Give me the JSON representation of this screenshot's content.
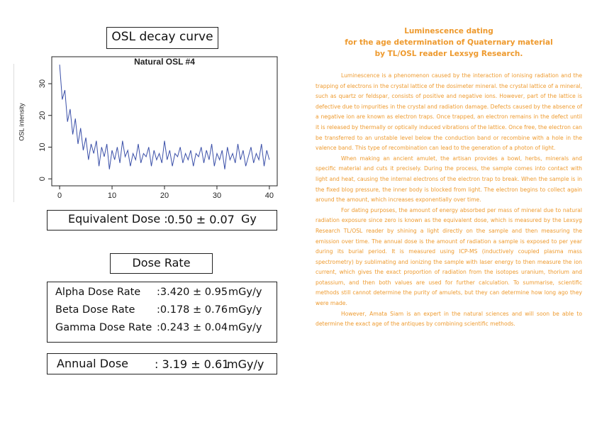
{
  "heading": "OSL decay curve",
  "chart_data": {
    "type": "line",
    "title": "Natural OSL #4",
    "ylabel": "OSL intensity",
    "color": "#3a4fa8",
    "x": [
      0,
      0.5,
      1,
      1.5,
      2,
      2.5,
      3,
      3.5,
      4,
      4.5,
      5,
      5.5,
      6,
      6.5,
      7,
      7.5,
      8,
      8.5,
      9,
      9.5,
      10,
      10.5,
      11,
      11.5,
      12,
      12.5,
      13,
      13.5,
      14,
      14.5,
      15,
      15.5,
      16,
      16.5,
      17,
      17.5,
      18,
      18.5,
      19,
      19.5,
      20,
      20.5,
      21,
      21.5,
      22,
      22.5,
      23,
      23.5,
      24,
      24.5,
      25,
      25.5,
      26,
      26.5,
      27,
      27.5,
      28,
      28.5,
      29,
      29.5,
      30,
      30.5,
      31,
      31.5,
      32,
      32.5,
      33,
      33.5,
      34,
      34.5,
      35,
      35.5,
      36,
      36.5,
      37,
      37.5,
      38,
      38.5,
      39,
      39.5,
      40
    ],
    "values": [
      36,
      25,
      28,
      18,
      22,
      14,
      19,
      11,
      16,
      9,
      13,
      6,
      11,
      8,
      12,
      4,
      10,
      7,
      11,
      3,
      9,
      6,
      10,
      5,
      12,
      7,
      9,
      4,
      8,
      6,
      11,
      5,
      8,
      7,
      10,
      4,
      9,
      6,
      8,
      5,
      12,
      6,
      9,
      4,
      8,
      7,
      10,
      5,
      8,
      6,
      9,
      4,
      8,
      7,
      10,
      5,
      9,
      6,
      11,
      4,
      8,
      6,
      9,
      3,
      10,
      6,
      8,
      5,
      11,
      6,
      9,
      4,
      7,
      10,
      5,
      8,
      6,
      11,
      4,
      9,
      6
    ],
    "xlim": [
      -1.5,
      41.5
    ],
    "ylim": [
      -2.2,
      38.5
    ],
    "xticks": [
      0,
      10,
      20,
      30,
      40
    ],
    "yticks": [
      0,
      10,
      20,
      30
    ]
  },
  "equivalent_dose": {
    "label": "Equivalent Dose :",
    "value": "0.50 ± 0.07",
    "unit": "Gy"
  },
  "dose_rate": {
    "heading": "Dose Rate",
    "rows": [
      {
        "label": "Alpha Dose Rate",
        "value": ":3.420 ± 0.95",
        "unit": "mGy/y"
      },
      {
        "label": "Beta Dose Rate",
        "value": ":0.178 ± 0.76",
        "unit": "mGy/y"
      },
      {
        "label": "Gamma Dose Rate",
        "value": ":0.243 ± 0.04",
        "unit": "mGy/y"
      }
    ]
  },
  "annual_dose": {
    "label": "Annual Dose",
    "value": ": 3.19 ± 0.61",
    "unit": "mGy/y"
  },
  "article": {
    "title": [
      "Luminescence dating",
      "for the age determination of Quaternary material",
      "by TL/OSL reader Lexsyg Research."
    ],
    "paragraphs": [
      "Luminescence is a phenomenon caused by the interaction of ionising radiation and the trapping of electrons in the crystal lattice of the dosimeter mineral. the crystal lattice of a mineral, such as quartz or feldspar, consists of positive and negative ions. However, part of the lattice is defective due to impurities in the crystal and radiation damage. Defects caused by the absence of a negative ion are known as electron traps. Once trapped, an electron remains in the defect until it is released by thermally or optically induced vibrations of the lattice. Once free, the electron can be transferred to an unstable level below the conduction band or recombine with a hole in the valence band. This type of recombination can lead to the generation of a photon of light.",
      "When making an ancient amulet, the artisan provides a bowl, herbs, minerals and specific material and cuts it precisely. During the process, the sample comes into contact with light and heat, causing the internal electrons of the electron trap to break. When the sample is in the fixed blog pressure, the inner body is blocked from light. The electron begins to collect again around the amount, which increases exponentially over time.",
      "For dating purposes, the amount of energy absorbed per mass of mineral due to natural radiation exposure since zero is known as the equivalent dose, which is measured by the Lexsyg Research TL/OSL reader by shining a light directly on the sample and then measuring the emission over time. The annual dose is the amount of radiation a sample is exposed to per year during its burial period. It is measured using ICP-MS (inductively coupled plasma mass spectrometry) by sublimating and ionizing the sample with laser energy to then measure the ion current, which gives the exact proportion of radiation from the isotopes uranium, thorium and potassium, and then both values are used for further calculation. To summarise, scientific methods still cannot determine the purity of amulets, but they can determine how long ago they were made.",
      "However, Amata Siam is an expert in the natural sciences and will soon be able to determine the exact age of the antiques by combining scientific methods."
    ]
  }
}
